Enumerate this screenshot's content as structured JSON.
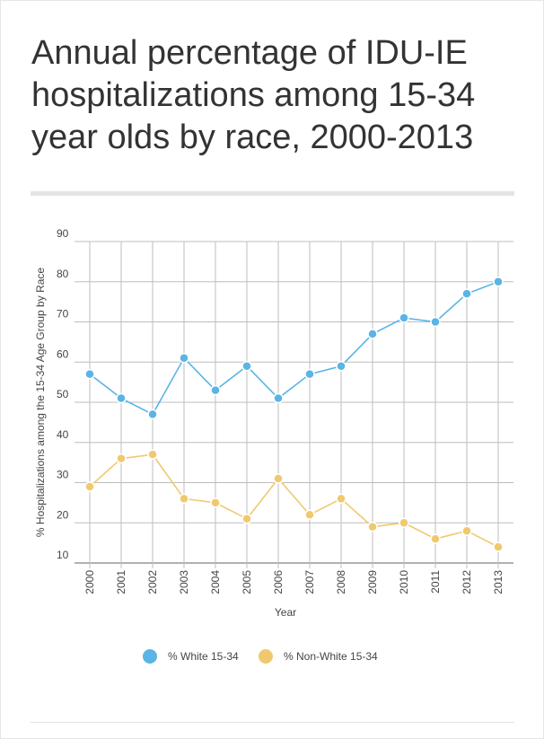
{
  "chart_data": {
    "type": "line",
    "title": "Annual percentage of IDU-IE hospitalizations among 15-34 year olds by race, 2000-2013",
    "x_label": "Year",
    "y_label": "% Hospitalizations among the 15-34 Age Group by Race",
    "categories": [
      "2000",
      "2001",
      "2002",
      "2003",
      "2004",
      "2005",
      "2006",
      "2007",
      "2008",
      "2009",
      "2010",
      "2011",
      "2012",
      "2013"
    ],
    "series": [
      {
        "name": "% White 15-34",
        "color": "#5ab4e5",
        "values": [
          57,
          51,
          47,
          61,
          53,
          59,
          51,
          57,
          59,
          67,
          71,
          70,
          77,
          80
        ]
      },
      {
        "name": "% Non-White 15-34",
        "color": "#f0c96e",
        "values": [
          29,
          36,
          37,
          26,
          25,
          21,
          31,
          22,
          26,
          19,
          20,
          16,
          18,
          14
        ]
      }
    ],
    "ylim": [
      10,
      90
    ],
    "yticks": [
      10,
      20,
      30,
      40,
      50,
      60,
      70,
      80,
      90
    ],
    "grid": true
  }
}
